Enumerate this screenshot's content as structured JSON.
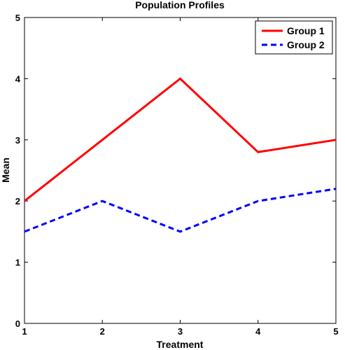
{
  "chart_data": {
    "type": "line",
    "title": "Population Profiles",
    "xlabel": "Treatment",
    "ylabel": "Mean",
    "x": [
      1,
      2,
      3,
      4,
      5
    ],
    "xlim": [
      1,
      5
    ],
    "ylim": [
      0,
      5
    ],
    "xticks": [
      "1",
      "2",
      "3",
      "4",
      "5"
    ],
    "yticks": [
      "0",
      "1",
      "2",
      "3",
      "4",
      "5"
    ],
    "grid": false,
    "legend_position": "top-right",
    "series": [
      {
        "name": "Group 1",
        "values": [
          2.0,
          3.0,
          4.0,
          2.8,
          3.0
        ],
        "color": "#ff0000",
        "style": "solid"
      },
      {
        "name": "Group 2",
        "values": [
          1.5,
          2.0,
          1.5,
          2.0,
          2.2
        ],
        "color": "#0000ff",
        "style": "dashed"
      }
    ]
  }
}
